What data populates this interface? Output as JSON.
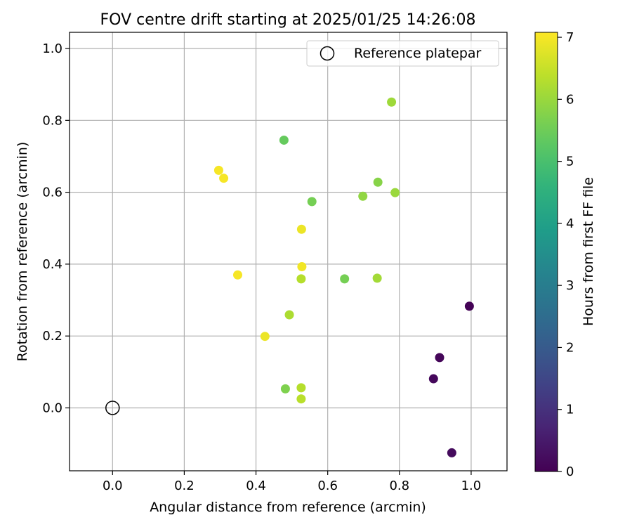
{
  "chart_data": {
    "type": "scatter",
    "title": "FOV centre drift starting at 2025/01/25 14:26:08",
    "xlabel": "Angular distance from reference (arcmin)",
    "ylabel": "Rotation from reference (arcmin)",
    "xlim": [
      -0.12,
      1.1
    ],
    "ylim": [
      -0.175,
      1.045
    ],
    "x_ticks": [
      {
        "value": 0.0,
        "label": "0.0"
      },
      {
        "value": 0.2,
        "label": "0.2"
      },
      {
        "value": 0.4,
        "label": "0.4"
      },
      {
        "value": 0.6,
        "label": "0.6"
      },
      {
        "value": 0.8,
        "label": "0.8"
      },
      {
        "value": 1.0,
        "label": "1.0"
      }
    ],
    "y_ticks": [
      {
        "value": 0.0,
        "label": "0.0"
      },
      {
        "value": 0.2,
        "label": "0.2"
      },
      {
        "value": 0.4,
        "label": "0.4"
      },
      {
        "value": 0.6,
        "label": "0.6"
      },
      {
        "value": 0.8,
        "label": "0.8"
      },
      {
        "value": 1.0,
        "label": "1.0"
      }
    ],
    "grid": true,
    "legend": {
      "position": "top-right",
      "entries": [
        "Reference platepar"
      ]
    },
    "reference_point": {
      "x": 0.0,
      "y": 0.0,
      "label": "Reference platepar"
    },
    "colorbar": {
      "label": "Hours from first FF file",
      "range": [
        0,
        7.08
      ],
      "ticks": [
        {
          "value": 0,
          "label": "0"
        },
        {
          "value": 1,
          "label": "1"
        },
        {
          "value": 2,
          "label": "2"
        },
        {
          "value": 3,
          "label": "3"
        },
        {
          "value": 4,
          "label": "4"
        },
        {
          "value": 5,
          "label": "5"
        },
        {
          "value": 6,
          "label": "6"
        },
        {
          "value": 7,
          "label": "7"
        }
      ],
      "colormap": "viridis"
    },
    "points": [
      {
        "x": 0.995,
        "y": 0.283,
        "hours": 0.05
      },
      {
        "x": 0.912,
        "y": 0.14,
        "hours": 0.1
      },
      {
        "x": 0.895,
        "y": 0.081,
        "hours": 0.15
      },
      {
        "x": 0.946,
        "y": -0.125,
        "hours": 0.2
      },
      {
        "x": 0.478,
        "y": 0.745,
        "hours": 5.4
      },
      {
        "x": 0.556,
        "y": 0.574,
        "hours": 5.6
      },
      {
        "x": 0.647,
        "y": 0.359,
        "hours": 5.6
      },
      {
        "x": 0.482,
        "y": 0.053,
        "hours": 5.7
      },
      {
        "x": 0.74,
        "y": 0.628,
        "hours": 5.8
      },
      {
        "x": 0.698,
        "y": 0.589,
        "hours": 5.9
      },
      {
        "x": 0.788,
        "y": 0.599,
        "hours": 6.0
      },
      {
        "x": 0.778,
        "y": 0.851,
        "hours": 6.05
      },
      {
        "x": 0.738,
        "y": 0.361,
        "hours": 6.1
      },
      {
        "x": 0.493,
        "y": 0.259,
        "hours": 6.2
      },
      {
        "x": 0.526,
        "y": 0.359,
        "hours": 6.3
      },
      {
        "x": 0.526,
        "y": 0.056,
        "hours": 6.3
      },
      {
        "x": 0.526,
        "y": 0.025,
        "hours": 6.35
      },
      {
        "x": 0.425,
        "y": 0.199,
        "hours": 6.9
      },
      {
        "x": 0.527,
        "y": 0.497,
        "hours": 6.9
      },
      {
        "x": 0.528,
        "y": 0.393,
        "hours": 6.95
      },
      {
        "x": 0.349,
        "y": 0.37,
        "hours": 7.0
      },
      {
        "x": 0.296,
        "y": 0.661,
        "hours": 7.0
      },
      {
        "x": 0.31,
        "y": 0.639,
        "hours": 7.0
      }
    ]
  }
}
